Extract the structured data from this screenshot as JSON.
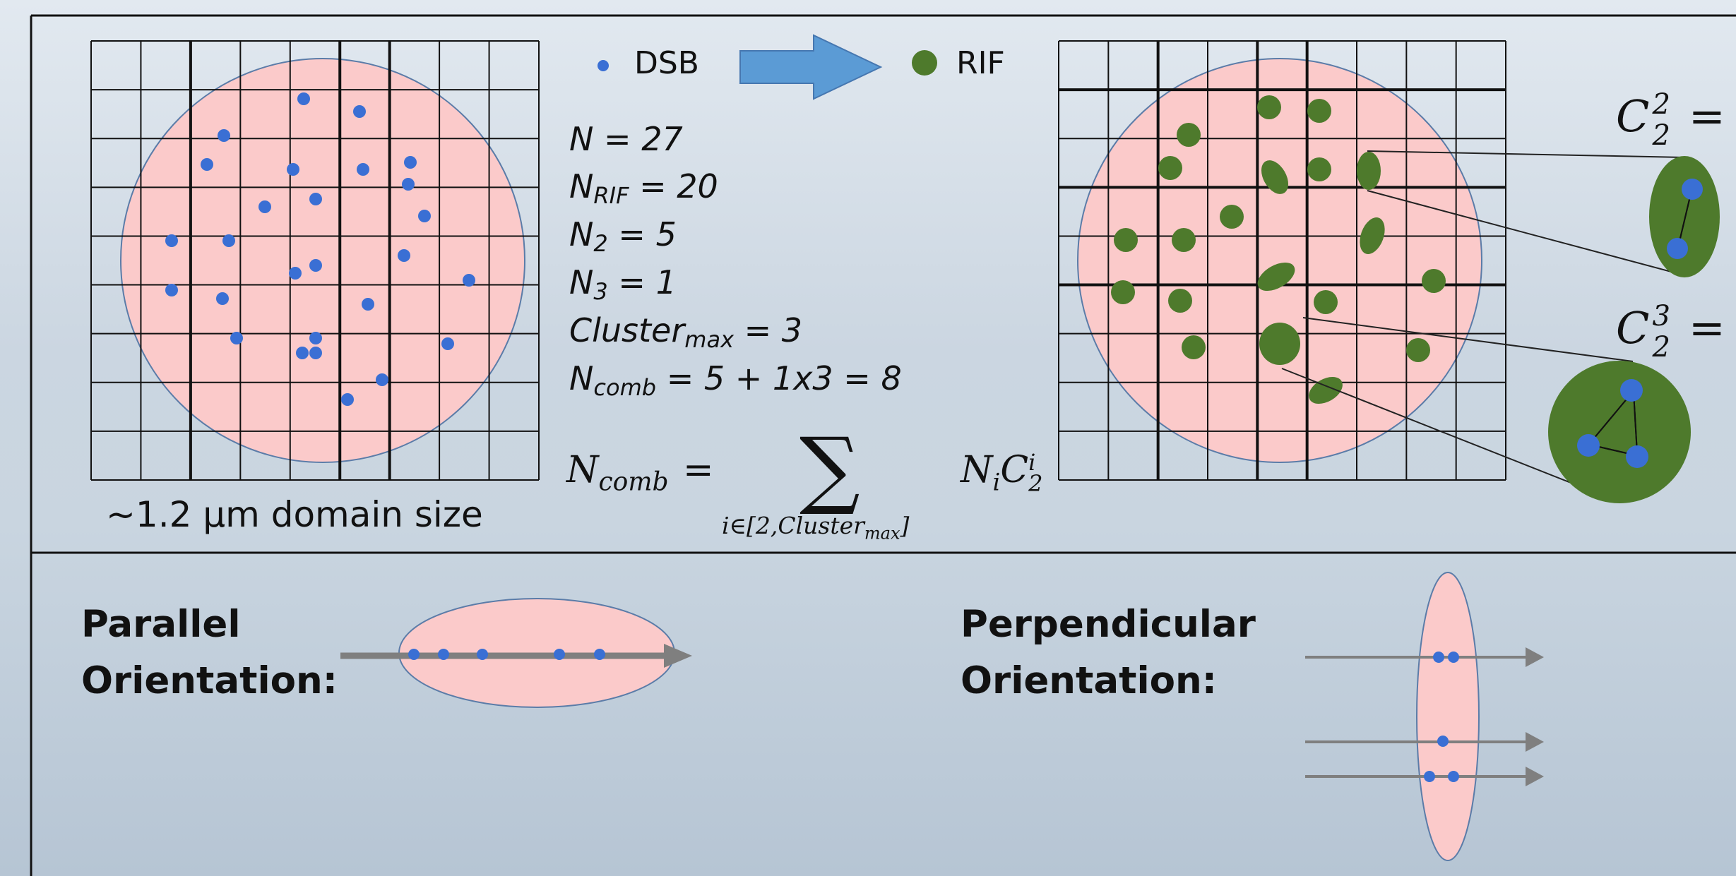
{
  "legend": {
    "dsb_label": "DSB",
    "rif_label": "RIF"
  },
  "stats": {
    "n_line": {
      "var": "N",
      "rest": " = 27"
    },
    "nrif_line": {
      "var": "N",
      "sub": "RIF",
      "rest": " = 20"
    },
    "n2_line": {
      "var": "N",
      "sub": "2",
      "rest": " = 5"
    },
    "n3_line": {
      "var": "N",
      "sub": "3",
      "rest": " = 1"
    },
    "cluster_line": {
      "var": "Cluster",
      "sub": "max",
      "rest": " = 3"
    },
    "ncomb_line": {
      "var": "N",
      "sub": "comb",
      "rest": " = 5 + 1x3 = 8"
    }
  },
  "formula": {
    "lhs": "N",
    "lhs_sub": "comb",
    "equals": "=",
    "sum_symbol": "∑",
    "sum_range": "i∈[2,Cluster",
    "sum_range_sub": "max",
    "sum_range_end": "]",
    "term_n": "N",
    "term_n_sub": "i",
    "term_c": "C",
    "term_c_sub": "2",
    "term_c_sup": "i"
  },
  "domain_label": "~1.2 µm domain size",
  "combinations": [
    {
      "symbol": "C",
      "sub": "2",
      "sup": "2",
      "equals": "="
    },
    {
      "symbol": "C",
      "sub": "2",
      "sup": "3",
      "equals": "="
    }
  ],
  "orientations": {
    "parallel": {
      "line1": "Parallel",
      "line2": "Orientation:"
    },
    "perpendicular": {
      "line1": "Perpendicular",
      "line2": "Orientation:"
    }
  },
  "colors": {
    "domain_fill": "#fbcaca",
    "domain_stroke": "#5b7ca8",
    "dsb_dot": "#3a6fd4",
    "rif_focus": "#4e7a2c",
    "arrow_fill": "#5b9bd5",
    "track_arrow": "#7f7f7f",
    "panel_border": "#111111"
  }
}
